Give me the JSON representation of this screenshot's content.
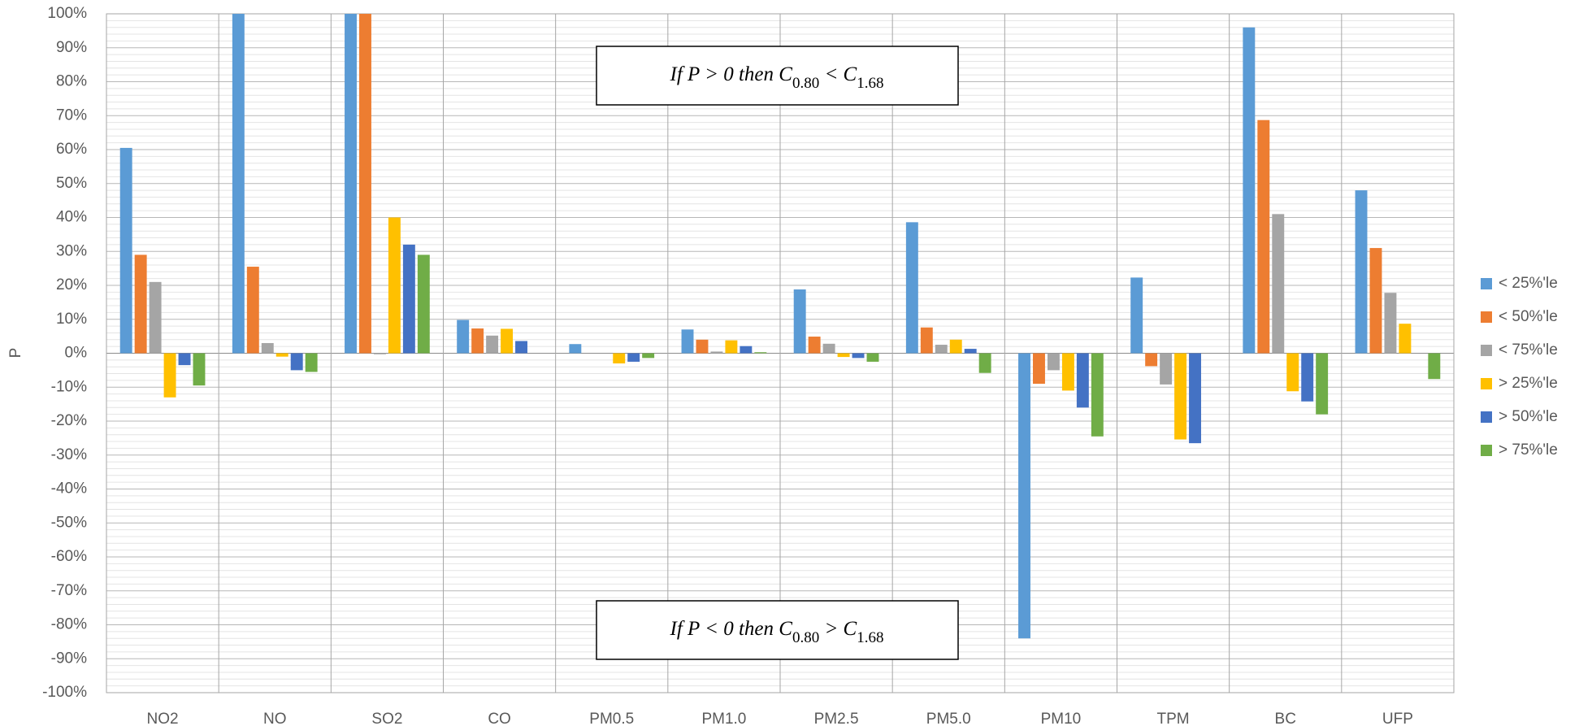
{
  "chart_data": {
    "type": "bar",
    "y_label": "P",
    "categories": [
      "NO2",
      "NO",
      "SO2",
      "CO",
      "PM0.5",
      "PM1.0",
      "PM2.5",
      "PM5.0",
      "PM10",
      "TPM",
      "BC",
      "UFP"
    ],
    "series": [
      {
        "name": "< 25%'le",
        "color": "#5b9bd5",
        "values": [
          60.5,
          100,
          100,
          9.8,
          2.7,
          7,
          18.8,
          38.6,
          -84,
          22.3,
          96,
          48
        ]
      },
      {
        "name": "< 50%'le",
        "color": "#ed7d31",
        "values": [
          29,
          25.5,
          100,
          7.3,
          0,
          4,
          4.9,
          7.6,
          -9,
          -3.8,
          68.7,
          31
        ]
      },
      {
        "name": "< 75%'le",
        "color": "#a5a5a5",
        "values": [
          21,
          3,
          -0.3,
          5.2,
          0,
          0.5,
          2.8,
          2.5,
          -5,
          -9.2,
          41,
          17.8
        ]
      },
      {
        "name": "> 25%'le",
        "color": "#ffc000",
        "values": [
          -13,
          -1,
          40,
          7.2,
          -3,
          3.8,
          -1.1,
          4,
          -11,
          -25.4,
          -11.2,
          8.7
        ]
      },
      {
        "name": "> 50%'le",
        "color": "#4472c4",
        "values": [
          -3.5,
          -5,
          32,
          3.6,
          -2.5,
          2.1,
          -1.4,
          1.3,
          -16,
          -26.5,
          -14.2,
          0
        ]
      },
      {
        "name": "> 75%'le",
        "color": "#70ad47",
        "values": [
          -9.5,
          -5.5,
          29,
          0,
          -1.4,
          0.3,
          -2.5,
          -5.8,
          -24.5,
          0,
          -18,
          -7.6
        ]
      }
    ],
    "ylim": [
      -100,
      100
    ],
    "yticks": [
      {
        "value": -100,
        "label": "-100%"
      },
      {
        "value": -90,
        "label": "-90%"
      },
      {
        "value": -80,
        "label": "-80%"
      },
      {
        "value": -70,
        "label": "-70%"
      },
      {
        "value": -60,
        "label": "-60%"
      },
      {
        "value": -50,
        "label": "-50%"
      },
      {
        "value": -40,
        "label": "-40%"
      },
      {
        "value": -30,
        "label": "-30%"
      },
      {
        "value": -20,
        "label": "-20%"
      },
      {
        "value": -10,
        "label": "-10%"
      },
      {
        "value": 0,
        "label": "0%"
      },
      {
        "value": 10,
        "label": "10%"
      },
      {
        "value": 20,
        "label": "20%"
      },
      {
        "value": 30,
        "label": "30%"
      },
      {
        "value": 40,
        "label": "40%"
      },
      {
        "value": 50,
        "label": "50%"
      },
      {
        "value": 60,
        "label": "60%"
      },
      {
        "value": 70,
        "label": "70%"
      },
      {
        "value": 80,
        "label": "80%"
      },
      {
        "value": 90,
        "label": "90%"
      },
      {
        "value": 100,
        "label": "100%"
      }
    ],
    "grid": true,
    "legend": "right",
    "annotations": [
      [
        "If P > 0 then C",
        "0.80",
        " < C",
        "1.68"
      ],
      [
        "If P < 0 then C",
        "0.80",
        " > C",
        "1.68"
      ]
    ]
  }
}
